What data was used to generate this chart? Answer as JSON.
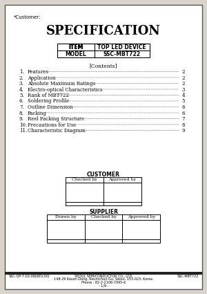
{
  "customer_label": "*Customer:",
  "title": "SPECIFICATION",
  "item_label": "ITEM",
  "item_value": "TOP LED DEVICE",
  "model_label": "MODEL",
  "model_value": "SSC-MBT722",
  "contents_header": "[Contents]",
  "contents": [
    {
      "num": "1.",
      "text": "Features",
      "page": "2"
    },
    {
      "num": "2.",
      "text": "Application",
      "page": "2"
    },
    {
      "num": "3.",
      "text": "Absolute Maximum Ratings",
      "page": "2"
    },
    {
      "num": "4.",
      "text": "Electro-optical Characteristics",
      "page": "3"
    },
    {
      "num": "5.",
      "text": "Rank of MBT722",
      "page": "4"
    },
    {
      "num": "6.",
      "text": "Soldering Profile",
      "page": "5"
    },
    {
      "num": "7.",
      "text": "Outline Dimension",
      "page": "6"
    },
    {
      "num": "8.",
      "text": "Packing",
      "page": "6"
    },
    {
      "num": "9.",
      "text": "Reel Packing Structure",
      "page": "7"
    },
    {
      "num": "10.",
      "text": "Precautions for Use",
      "page": "8"
    },
    {
      "num": "11.",
      "text": "Characteristic Diagram",
      "page": "9"
    }
  ],
  "customer_section": "CUSTOMER",
  "customer_cols": [
    "Checked by",
    "Approved by"
  ],
  "supplier_section": "SUPPLIER",
  "supplier_cols": [
    "Drawn by",
    "Checked by",
    "Approved by"
  ],
  "footer_left": "SSC-QP-7-03-08(REV.00)",
  "footer_center_line1": "SEOUL SEMICONDUCTOR CO., LTD.",
  "footer_center_line2": "148-29 Kasan-Dong, Keumchun-Gu, Seoul, 153-023, Korea",
  "footer_center_line3": "Phone : 82-2-2106-7095-6",
  "footer_center_line4": "- 1/9 -",
  "footer_right": "SSC-MBT722",
  "bg_color": "#d8d4cc",
  "page_bg": "#ffffff",
  "border_color": "#000000",
  "text_color": "#000000"
}
